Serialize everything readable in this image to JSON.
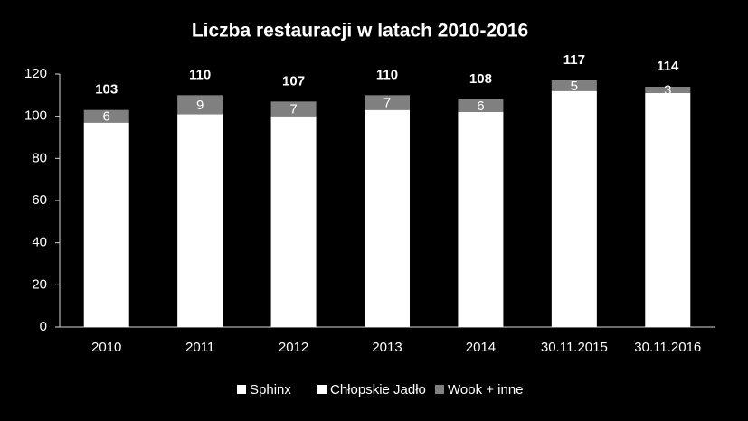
{
  "chart_data": {
    "type": "stacked_bar",
    "title": "Liczba restauracji w latach 2010-2016",
    "categories": [
      "2010",
      "2011",
      "2012",
      "2013",
      "2014",
      "30.11.2015",
      "30.11.2016"
    ],
    "series": [
      {
        "name": "Sphinx",
        "color": "#ffffff",
        "values": [
          97,
          101,
          100,
          103,
          102,
          112,
          111
        ]
      },
      {
        "name": "Chłopskie Jadło",
        "color": "#ffffff",
        "values": [
          0,
          0,
          0,
          0,
          0,
          0,
          0
        ]
      },
      {
        "name": "Wook + inne",
        "color": "#808080",
        "values": [
          6,
          9,
          7,
          7,
          6,
          5,
          3
        ]
      }
    ],
    "totals": [
      103,
      110,
      107,
      110,
      108,
      117,
      114
    ],
    "ylim": [
      0,
      120
    ],
    "yticks": [
      0,
      20,
      40,
      60,
      80,
      100,
      120
    ]
  }
}
